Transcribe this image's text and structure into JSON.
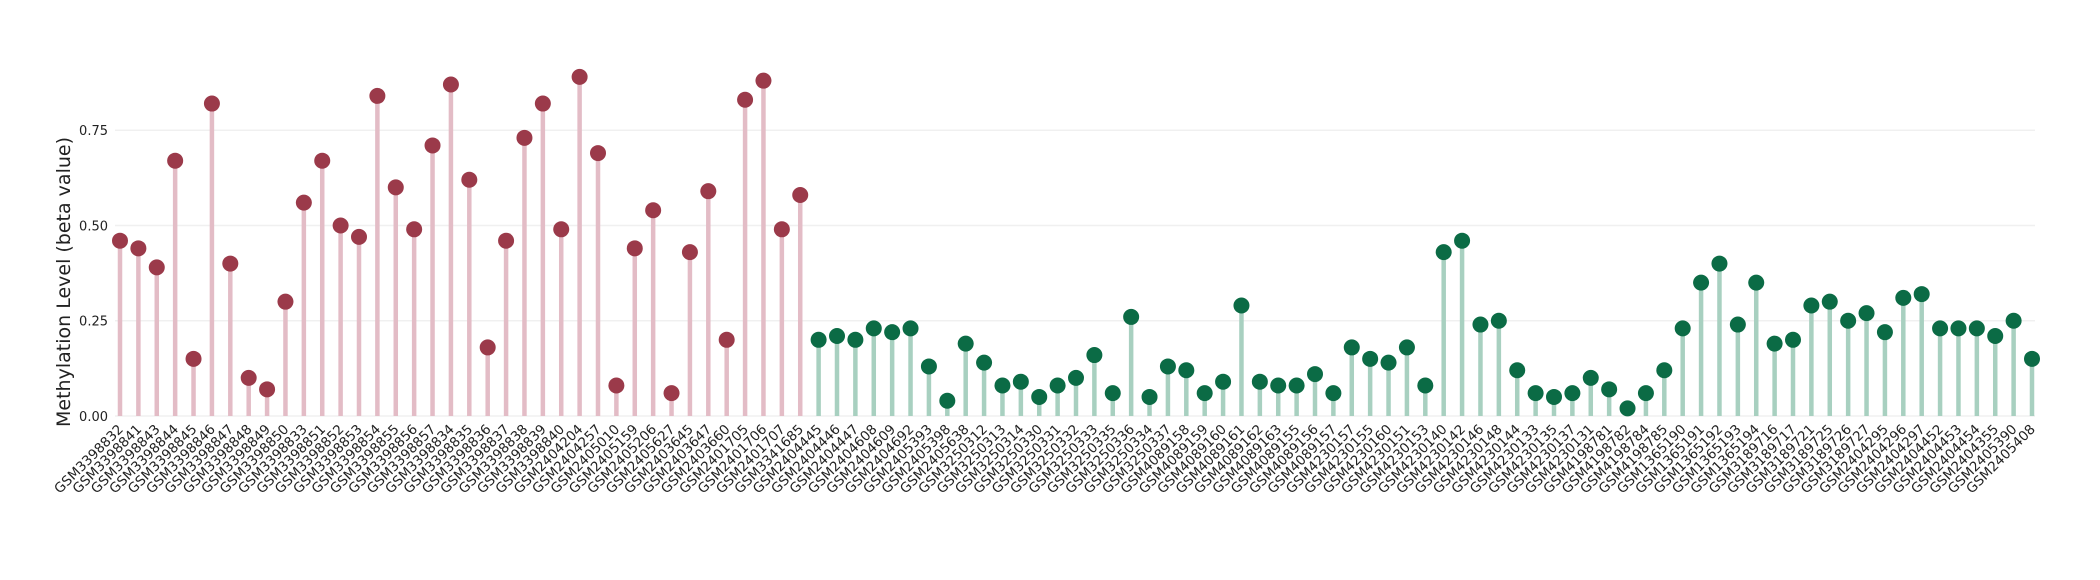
{
  "chart_data": {
    "type": "lollipop",
    "y_label": "Methylation Level (beta value)",
    "categories": [
      "GSM3398832",
      "GSM3398841",
      "GSM3398843",
      "GSM3398844",
      "GSM3398845",
      "GSM3398846",
      "GSM3398847",
      "GSM3398848",
      "GSM3398849",
      "GSM3398850",
      "GSM3398833",
      "GSM3398851",
      "GSM3398852",
      "GSM3398853",
      "GSM3398854",
      "GSM3398855",
      "GSM3398856",
      "GSM3398857",
      "GSM3398834",
      "GSM3398835",
      "GSM3398836",
      "GSM3398837",
      "GSM3398838",
      "GSM3398839",
      "GSM3398840",
      "GSM2404204",
      "GSM2404257",
      "GSM2405010",
      "GSM2405159",
      "GSM2405206",
      "GSM2405627",
      "GSM2403645",
      "GSM2403647",
      "GSM2403660",
      "GSM2401705",
      "GSM2401706",
      "GSM2401707",
      "GSM3341685",
      "GSM2404445",
      "GSM2404446",
      "GSM2404447",
      "GSM2404608",
      "GSM2404609",
      "GSM2404692",
      "GSM2405393",
      "GSM2405398",
      "GSM2405638",
      "GSM3250312",
      "GSM3250313",
      "GSM3250314",
      "GSM3250330",
      "GSM3250331",
      "GSM3250332",
      "GSM3250333",
      "GSM3250335",
      "GSM3250336",
      "GSM3250334",
      "GSM3250337",
      "GSM4089158",
      "GSM4089159",
      "GSM4089160",
      "GSM4089161",
      "GSM4089162",
      "GSM4089163",
      "GSM4089155",
      "GSM4089156",
      "GSM4089157",
      "GSM4230157",
      "GSM4230155",
      "GSM4230160",
      "GSM4230151",
      "GSM4230153",
      "GSM4230140",
      "GSM4230142",
      "GSM4230146",
      "GSM4230148",
      "GSM4230144",
      "GSM4230133",
      "GSM4230135",
      "GSM4230137",
      "GSM4230131",
      "GSM4198781",
      "GSM4198782",
      "GSM4198784",
      "GSM4198785",
      "GSM1365190",
      "GSM1365191",
      "GSM1365192",
      "GSM1365193",
      "GSM1365194",
      "GSM3189716",
      "GSM3189717",
      "GSM3189721",
      "GSM3189725",
      "GSM3189726",
      "GSM3189727",
      "GSM2404295",
      "GSM2404296",
      "GSM2404297",
      "GSM2404452",
      "GSM2404453",
      "GSM2404454",
      "GSM2404355",
      "GSM2405390",
      "GSM2405408"
    ],
    "series": [
      {
        "color": "#9b3a4a",
        "stem_color": "#e3bcc6",
        "values": [
          0.46,
          0.44,
          0.39,
          0.67,
          0.15,
          0.82,
          0.4,
          0.1,
          0.07,
          0.3,
          0.56,
          0.67,
          0.5,
          0.47,
          0.84,
          0.6,
          0.49,
          0.71,
          0.87,
          0.62,
          0.18,
          0.46,
          0.73,
          0.82,
          0.49,
          0.89,
          0.69,
          0.08,
          0.44,
          0.54,
          0.06,
          0.43,
          0.59,
          0.2,
          0.83,
          0.88,
          0.49,
          0.58,
          null,
          null,
          null,
          null,
          null,
          null,
          null,
          null,
          null,
          null,
          null,
          null,
          null,
          null,
          null,
          null,
          null,
          null,
          null,
          null,
          null,
          null,
          null,
          null,
          null,
          null,
          null,
          null,
          null,
          null,
          null,
          null,
          null,
          null,
          null,
          null,
          null,
          null,
          null,
          null,
          null,
          null,
          null,
          null,
          null,
          null,
          null,
          null,
          null,
          null,
          null,
          null,
          null,
          null,
          null,
          null,
          null,
          null,
          null,
          null,
          null,
          null,
          null,
          null,
          null,
          null,
          null
        ]
      },
      {
        "color": "#0b6b45",
        "stem_color": "#a8d0c0",
        "values": [
          null,
          null,
          null,
          null,
          null,
          null,
          null,
          null,
          null,
          null,
          null,
          null,
          null,
          null,
          null,
          null,
          null,
          null,
          null,
          null,
          null,
          null,
          null,
          null,
          null,
          null,
          null,
          null,
          null,
          null,
          null,
          null,
          null,
          null,
          null,
          null,
          null,
          null,
          0.2,
          0.21,
          0.2,
          0.23,
          0.22,
          0.23,
          0.13,
          0.04,
          0.19,
          0.14,
          0.08,
          0.09,
          0.05,
          0.08,
          0.1,
          0.16,
          0.06,
          0.26,
          0.05,
          0.13,
          0.12,
          0.06,
          0.09,
          0.29,
          0.09,
          0.08,
          0.08,
          0.11,
          0.06,
          0.18,
          0.15,
          0.14,
          0.18,
          0.08,
          0.43,
          0.46,
          0.24,
          0.25,
          0.12,
          0.06,
          0.05,
          0.06,
          0.1,
          0.07,
          0.02,
          0.06,
          0.12,
          0.23,
          0.35,
          0.4,
          0.24,
          0.35,
          0.19,
          0.2,
          0.29,
          0.3,
          0.25,
          0.27,
          0.22,
          0.31,
          0.32,
          0.23,
          0.23,
          0.23,
          0.21,
          0.25,
          0.15
        ]
      }
    ],
    "ylim": [
      0,
      0.95
    ],
    "yticks": [
      {
        "value": 0,
        "label": "0.00"
      },
      {
        "value": 0.25,
        "label": "0.25"
      },
      {
        "value": 0.5,
        "label": "0.50"
      },
      {
        "value": 0.75,
        "label": "0.75"
      }
    ],
    "grid": true
  }
}
